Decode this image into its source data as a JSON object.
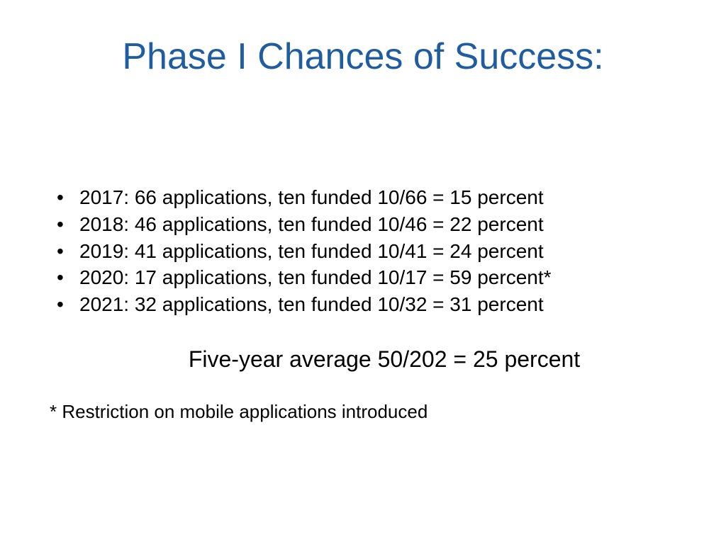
{
  "title": "Phase I Chances of Success:",
  "bullets": {
    "0": "2017: 66 applications, ten funded 10/66 = 15 percent",
    "1": "2018: 46 applications, ten funded 10/46 = 22 percent",
    "2": "2019: 41 applications, ten funded 10/41 = 24 percent",
    "3": "2020: 17 applications, ten funded 10/17 = 59 percent*",
    "4": "2021: 32 applications, ten funded 10/32 = 31 percent"
  },
  "summary": "Five-year average 50/202 = 25 percent",
  "footnote": "* Restriction on mobile applications introduced",
  "colors": {
    "title_color": "#1f5ca0",
    "text_color": "#000000",
    "background_color": "#ffffff"
  },
  "typography": {
    "title_fontsize": 52,
    "bullet_fontsize": 28,
    "summary_fontsize": 32,
    "footnote_fontsize": 26,
    "font_family": "Arial"
  }
}
